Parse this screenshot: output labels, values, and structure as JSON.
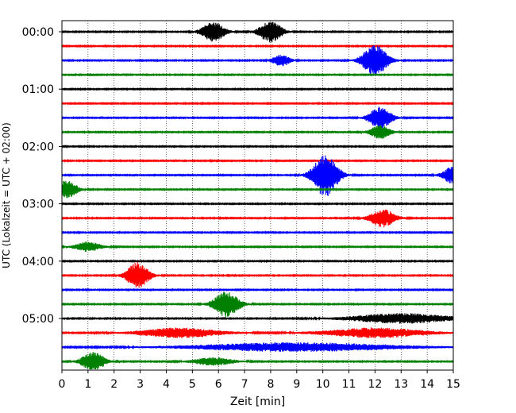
{
  "chart_data": {
    "type": "line",
    "title": "",
    "xlabel": "Zeit  [min]",
    "ylabel": "UTC (Lokalzeit = UTC + 02:00)",
    "xlim": [
      0,
      15
    ],
    "x_ticks": [
      "0",
      "1",
      "2",
      "3",
      "4",
      "5",
      "6",
      "7",
      "8",
      "9",
      "10",
      "11",
      "12",
      "13",
      "14",
      "15"
    ],
    "y_ticks": [
      "00:00",
      "01:00",
      "02:00",
      "03:00",
      "04:00",
      "05:00"
    ],
    "grid": "vertical dotted",
    "colors": [
      "#000000",
      "#ff0000",
      "#0000ff",
      "#008000"
    ],
    "line_interval_min": 15,
    "traces": [
      {
        "start": "00:00",
        "color": "#000000",
        "events": [
          {
            "t": 5.8,
            "amp": 1.0,
            "w": 0.45
          },
          {
            "t": 8.0,
            "amp": 1.1,
            "w": 0.45
          }
        ]
      },
      {
        "start": "00:15",
        "color": "#ff0000",
        "events": []
      },
      {
        "start": "00:30",
        "color": "#0000ff",
        "events": [
          {
            "t": 8.4,
            "amp": 0.6,
            "w": 0.35
          },
          {
            "t": 12.0,
            "amp": 1.6,
            "w": 0.5
          }
        ]
      },
      {
        "start": "00:45",
        "color": "#008000",
        "events": []
      },
      {
        "start": "01:00",
        "color": "#000000",
        "events": []
      },
      {
        "start": "01:15",
        "color": "#ff0000",
        "events": []
      },
      {
        "start": "01:30",
        "color": "#0000ff",
        "events": [
          {
            "t": 12.2,
            "amp": 1.1,
            "w": 0.45
          }
        ]
      },
      {
        "start": "01:45",
        "color": "#008000",
        "events": [
          {
            "t": 12.2,
            "amp": 0.7,
            "w": 0.4
          }
        ]
      },
      {
        "start": "02:00",
        "color": "#000000",
        "events": []
      },
      {
        "start": "02:15",
        "color": "#ff0000",
        "events": []
      },
      {
        "start": "02:30",
        "color": "#0000ff",
        "events": [
          {
            "t": 10.1,
            "amp": 2.2,
            "w": 0.5
          },
          {
            "t": 15.0,
            "amp": 0.9,
            "w": 0.4
          }
        ]
      },
      {
        "start": "02:45",
        "color": "#008000",
        "events": [
          {
            "t": 0.2,
            "amp": 0.9,
            "w": 0.4
          }
        ]
      },
      {
        "start": "03:00",
        "color": "#000000",
        "events": []
      },
      {
        "start": "03:15",
        "color": "#ff0000",
        "events": [
          {
            "t": 12.3,
            "amp": 0.9,
            "w": 0.5
          }
        ]
      },
      {
        "start": "03:30",
        "color": "#0000ff",
        "events": []
      },
      {
        "start": "03:45",
        "color": "#008000",
        "events": [
          {
            "t": 1.0,
            "amp": 0.5,
            "w": 0.5
          }
        ]
      },
      {
        "start": "04:00",
        "color": "#000000",
        "events": []
      },
      {
        "start": "04:15",
        "color": "#ff0000",
        "events": [
          {
            "t": 2.9,
            "amp": 1.3,
            "w": 0.45
          }
        ]
      },
      {
        "start": "04:30",
        "color": "#0000ff",
        "events": []
      },
      {
        "start": "04:45",
        "color": "#008000",
        "events": [
          {
            "t": 6.3,
            "amp": 1.3,
            "w": 0.5
          }
        ]
      },
      {
        "start": "05:00",
        "color": "#000000",
        "events": [
          {
            "t": 13.0,
            "amp": 0.5,
            "w": 2.0
          }
        ]
      },
      {
        "start": "05:15",
        "color": "#ff0000",
        "events": [
          {
            "t": 4.5,
            "amp": 0.5,
            "w": 1.6
          },
          {
            "t": 12.0,
            "amp": 0.5,
            "w": 2.0
          }
        ]
      },
      {
        "start": "05:30",
        "color": "#0000ff",
        "events": [
          {
            "t": 9.0,
            "amp": 0.45,
            "w": 4.0
          }
        ]
      },
      {
        "start": "05:45",
        "color": "#008000",
        "events": [
          {
            "t": 1.2,
            "amp": 1.0,
            "w": 0.45
          },
          {
            "t": 5.8,
            "amp": 0.4,
            "w": 0.8
          }
        ]
      }
    ]
  }
}
